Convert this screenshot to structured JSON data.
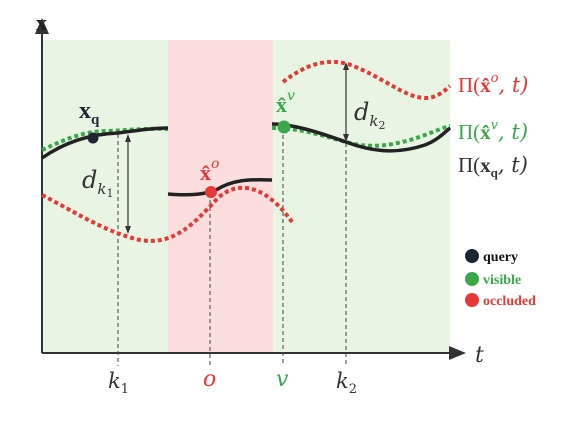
{
  "axes": {
    "y_label": "x",
    "x_label": "t",
    "ticks": [
      {
        "id": "k1",
        "label": "k",
        "sub": "1",
        "color": "#333333"
      },
      {
        "id": "o",
        "label": "o",
        "sub": "",
        "color": "#e53935"
      },
      {
        "id": "v",
        "label": "v",
        "sub": "",
        "color": "#3aa84a"
      },
      {
        "id": "k2",
        "label": "k",
        "sub": "2",
        "color": "#333333"
      }
    ]
  },
  "regions": [
    {
      "name": "visible-region-left",
      "color": "#e8f5e3"
    },
    {
      "name": "occluded-region",
      "color": "#fcdede"
    },
    {
      "name": "visible-region-right",
      "color": "#e8f5e3"
    }
  ],
  "points": {
    "query": {
      "label": "x",
      "sub": "q",
      "color": "#1f2633"
    },
    "occluded": {
      "label": "x̂",
      "sup": "o",
      "color": "#e53935"
    },
    "visible": {
      "label": "x̂",
      "sup": "v",
      "color": "#3aa84a"
    }
  },
  "distances": {
    "d1": {
      "label": "d",
      "sub": "k",
      "subsub": "1"
    },
    "d2": {
      "label": "d",
      "sub": "k",
      "subsub": "2"
    }
  },
  "curve_labels": {
    "occluded": {
      "pi": "Π(",
      "x": "x̂",
      "sup": "o",
      "rest": ", t)",
      "color": "#e53935"
    },
    "visible": {
      "pi": "Π(",
      "x": "x̂",
      "sup": "v",
      "rest": ", t)",
      "color": "#3aa84a"
    },
    "query": {
      "pi": "Π(",
      "x": "x",
      "sub": "q",
      "rest": ", t)",
      "color": "#333333"
    }
  },
  "legend": [
    {
      "label": "query",
      "color": "#1f2633"
    },
    {
      "label": "visible",
      "color": "#3aa84a"
    },
    {
      "label": "occluded",
      "color": "#e53935"
    }
  ]
}
